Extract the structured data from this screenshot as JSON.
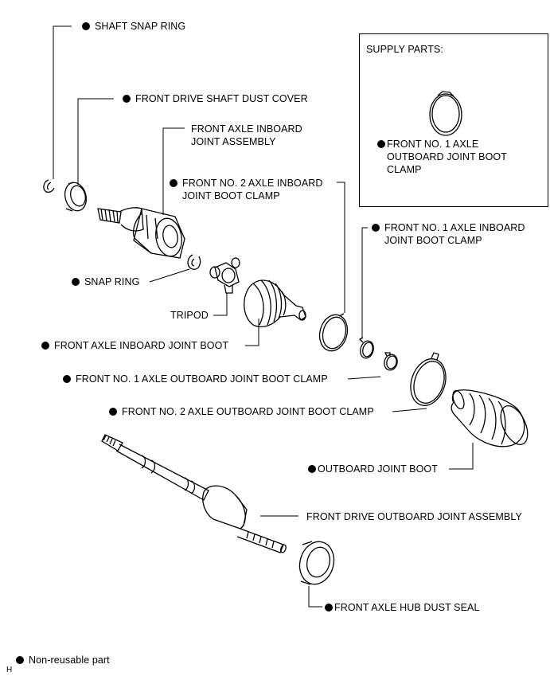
{
  "labels": {
    "shaft_snap_ring": "SHAFT SNAP RING",
    "front_drive_shaft_dust_cover": "FRONT DRIVE SHAFT DUST COVER",
    "front_axle_inboard_joint_assembly": "FRONT AXLE INBOARD\nJOINT ASSEMBLY",
    "front_no2_axle_inboard_joint_boot_clamp": "FRONT NO. 2 AXLE INBOARD\nJOINT BOOT CLAMP",
    "front_no1_axle_inboard_joint_boot_clamp": "FRONT NO. 1 AXLE INBOARD\nJOINT BOOT CLAMP",
    "snap_ring": "SNAP RING",
    "tripod": "TRIPOD",
    "front_axle_inboard_joint_boot": "FRONT AXLE INBOARD JOINT BOOT",
    "front_no1_axle_outboard_joint_boot_clamp": "FRONT NO. 1 AXLE OUTBOARD JOINT BOOT CLAMP",
    "front_no2_axle_outboard_joint_boot_clamp": "FRONT NO. 2 AXLE OUTBOARD JOINT BOOT CLAMP",
    "outboard_joint_boot": "OUTBOARD JOINT BOOT",
    "front_drive_outboard_joint_assembly": "FRONT DRIVE OUTBOARD JOINT ASSEMBLY",
    "front_axle_hub_dust_seal": "FRONT AXLE HUB DUST SEAL"
  },
  "supply_box": {
    "title": "SUPPLY PARTS:",
    "part": "FRONT NO. 1 AXLE\nOUTBOARD JOINT BOOT\nCLAMP"
  },
  "legend": {
    "text": "Non-reusable part",
    "code": "H"
  }
}
